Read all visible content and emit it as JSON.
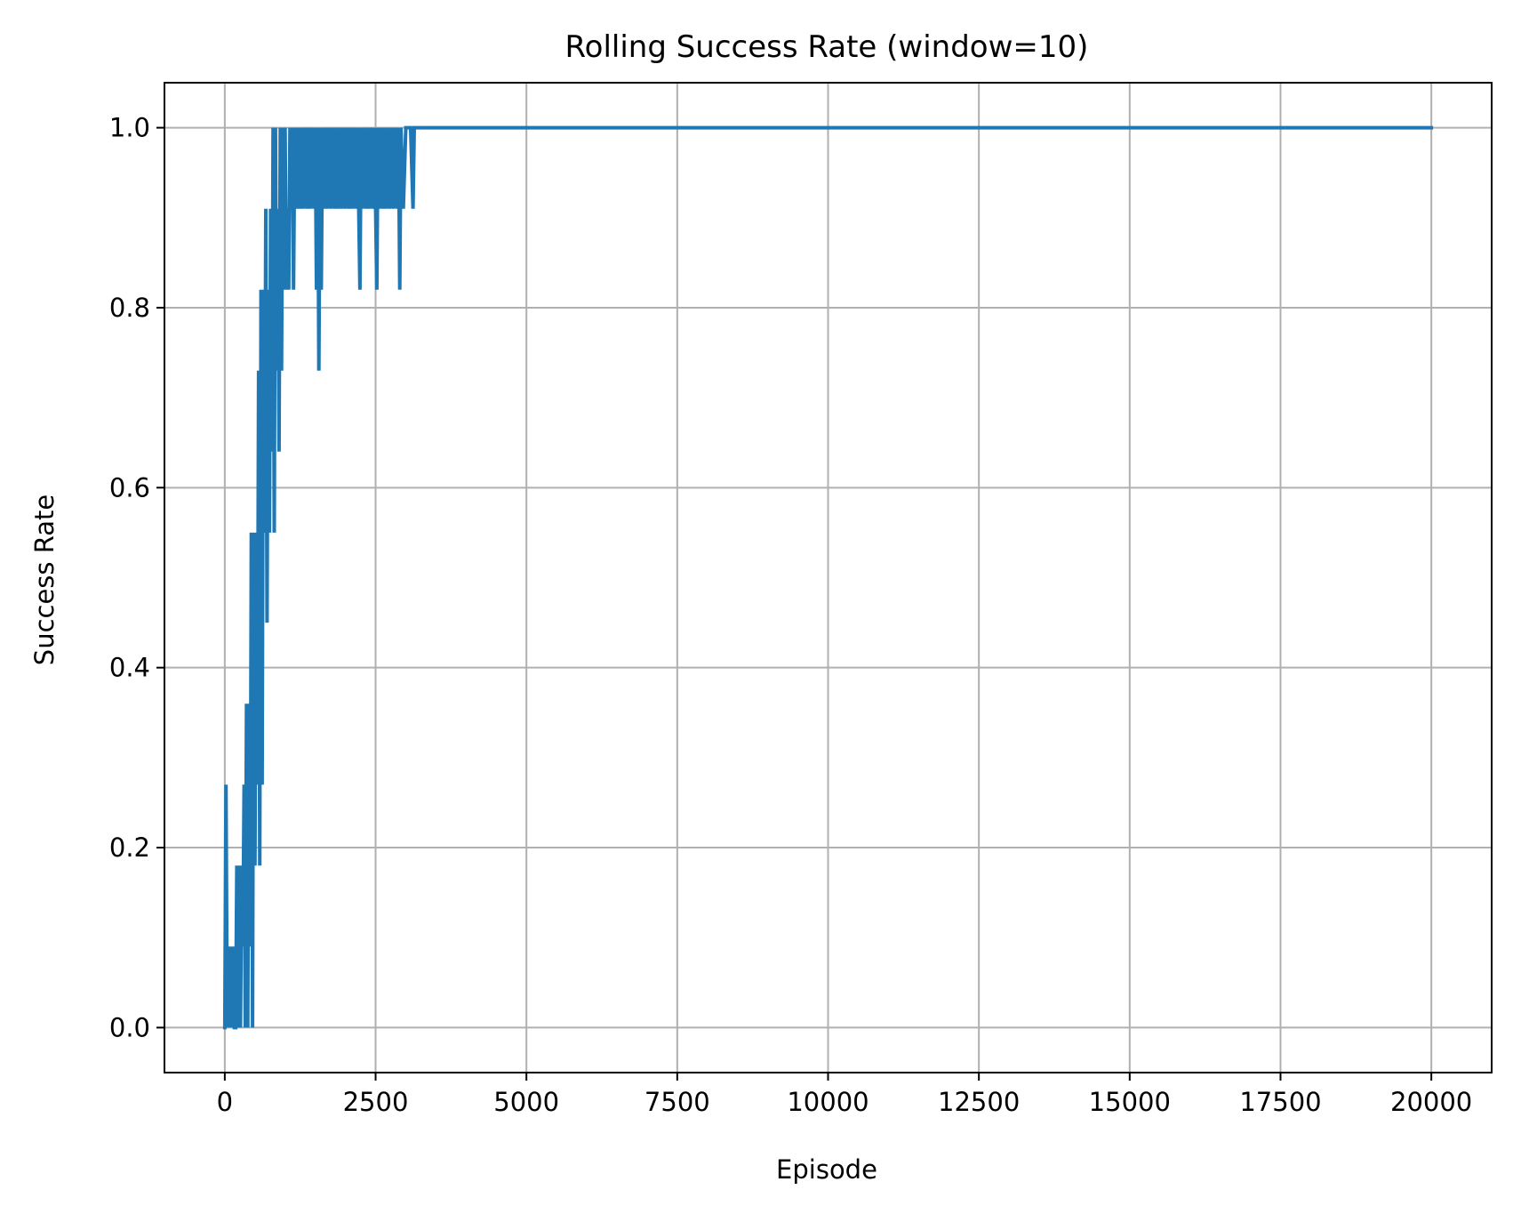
{
  "chart_data": {
    "type": "line",
    "title": "Rolling Success Rate (window=10)",
    "xlabel": "Episode",
    "ylabel": "Success Rate",
    "xlim": [
      -1000,
      21000
    ],
    "ylim": [
      -0.05,
      1.05
    ],
    "xticks": [
      0,
      2500,
      5000,
      7500,
      10000,
      12500,
      15000,
      17500,
      20000
    ],
    "xtick_labels": [
      "0",
      "2500",
      "5000",
      "7500",
      "10000",
      "12500",
      "15000",
      "17500",
      "20000"
    ],
    "yticks": [
      0.0,
      0.2,
      0.4,
      0.6,
      0.8,
      1.0
    ],
    "ytick_labels": [
      "0.0",
      "0.2",
      "0.4",
      "0.6",
      "0.8",
      "1.0"
    ],
    "grid": true,
    "legend": "none",
    "line_color": "#1f77b4",
    "grid_color": "#b0b0b0",
    "series": [
      {
        "x": [
          0,
          20,
          40,
          60,
          80,
          100,
          120,
          140,
          160,
          180,
          200,
          220,
          240,
          260,
          280,
          300,
          320,
          340,
          360,
          380,
          400,
          420,
          440,
          460,
          480,
          500,
          520,
          540,
          560,
          580,
          600,
          620,
          640,
          660,
          680,
          700,
          720,
          740,
          760,
          780,
          800,
          820,
          840,
          860,
          880,
          900,
          920,
          940,
          960,
          980,
          1000,
          1020,
          1040,
          1060,
          1080,
          1100,
          1120,
          1140,
          1160,
          1180,
          1200,
          1220,
          1240,
          1260,
          1280,
          1300,
          1340,
          1360,
          1380,
          1420,
          1440,
          1480,
          1500,
          1520,
          1540,
          1560,
          1580,
          1600,
          1620,
          1640,
          1660,
          1700,
          1720,
          1760,
          1780,
          1820,
          1840,
          1880,
          1900,
          1940,
          1960,
          2000,
          2020,
          2060,
          2080,
          2120,
          2140,
          2180,
          2200,
          2240,
          2260,
          2280,
          2300,
          2340,
          2360,
          2400,
          2420,
          2460,
          2480,
          2520,
          2540,
          2560,
          2580,
          2620,
          2640,
          2680,
          2700,
          2740,
          2760,
          2800,
          2820,
          2860,
          2880,
          2900,
          2920,
          2960,
          3000,
          3080,
          3120,
          3140,
          3160,
          3200,
          20000
        ],
        "y": [
          0.0,
          0.27,
          0.0,
          0.09,
          0.0,
          0.09,
          0.0,
          0.09,
          0.0,
          0.0,
          0.18,
          0.0,
          0.18,
          0.0,
          0.18,
          0.09,
          0.27,
          0.0,
          0.36,
          0.0,
          0.36,
          0.09,
          0.55,
          0.0,
          0.55,
          0.18,
          0.55,
          0.27,
          0.73,
          0.18,
          0.82,
          0.27,
          0.82,
          0.55,
          0.91,
          0.45,
          0.82,
          0.55,
          0.91,
          0.64,
          1.0,
          0.55,
          1.0,
          0.73,
          0.91,
          0.64,
          1.0,
          0.73,
          1.0,
          0.82,
          1.0,
          0.82,
          0.91,
          0.82,
          1.0,
          0.91,
          1.0,
          0.82,
          1.0,
          0.91,
          1.0,
          0.91,
          1.0,
          0.91,
          1.0,
          0.91,
          1.0,
          0.91,
          1.0,
          0.91,
          1.0,
          0.91,
          1.0,
          0.82,
          1.0,
          0.73,
          1.0,
          0.82,
          1.0,
          0.91,
          1.0,
          0.91,
          1.0,
          0.91,
          1.0,
          0.91,
          1.0,
          0.91,
          1.0,
          0.91,
          1.0,
          0.91,
          1.0,
          0.91,
          1.0,
          0.91,
          1.0,
          0.91,
          1.0,
          0.82,
          1.0,
          0.91,
          1.0,
          0.91,
          1.0,
          0.91,
          1.0,
          0.91,
          1.0,
          0.82,
          1.0,
          0.91,
          1.0,
          0.91,
          1.0,
          0.91,
          1.0,
          0.91,
          1.0,
          0.91,
          1.0,
          0.91,
          1.0,
          0.82,
          1.0,
          0.91,
          1.0,
          1.0,
          0.91,
          1.0,
          1.0,
          1.0,
          1.0
        ]
      }
    ]
  }
}
